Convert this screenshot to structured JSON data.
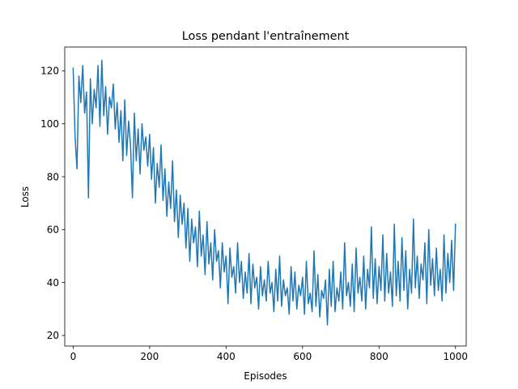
{
  "chart_data": {
    "type": "line",
    "title": "Loss pendant l'entraînement",
    "xlabel": "Episodes",
    "ylabel": "Loss",
    "xlim": [
      -22,
      1028
    ],
    "ylim": [
      16,
      129
    ],
    "xticks": [
      0,
      200,
      400,
      600,
      800,
      1000
    ],
    "yticks": [
      20,
      40,
      60,
      80,
      100,
      120
    ],
    "grid": false,
    "series": [
      {
        "name": "",
        "color": "#1f77b4",
        "x": [
          0,
          5,
          10,
          15,
          20,
          25,
          30,
          35,
          40,
          45,
          50,
          55,
          60,
          65,
          70,
          75,
          80,
          85,
          90,
          95,
          100,
          105,
          110,
          115,
          120,
          125,
          130,
          135,
          140,
          145,
          150,
          155,
          160,
          165,
          170,
          175,
          180,
          185,
          190,
          195,
          200,
          205,
          210,
          215,
          220,
          225,
          230,
          235,
          240,
          245,
          250,
          255,
          260,
          265,
          270,
          275,
          280,
          285,
          290,
          295,
          300,
          305,
          310,
          315,
          320,
          325,
          330,
          335,
          340,
          345,
          350,
          355,
          360,
          365,
          370,
          375,
          380,
          385,
          390,
          395,
          400,
          405,
          410,
          415,
          420,
          425,
          430,
          435,
          440,
          445,
          450,
          455,
          460,
          465,
          470,
          475,
          480,
          485,
          490,
          495,
          500,
          505,
          510,
          515,
          520,
          525,
          530,
          535,
          540,
          545,
          550,
          555,
          560,
          565,
          570,
          575,
          580,
          585,
          590,
          595,
          600,
          605,
          610,
          615,
          620,
          625,
          630,
          635,
          640,
          645,
          650,
          655,
          660,
          665,
          670,
          675,
          680,
          685,
          690,
          695,
          700,
          705,
          710,
          715,
          720,
          725,
          730,
          735,
          740,
          745,
          750,
          755,
          760,
          765,
          770,
          775,
          780,
          785,
          790,
          795,
          800,
          805,
          810,
          815,
          820,
          825,
          830,
          835,
          840,
          845,
          850,
          855,
          860,
          865,
          870,
          875,
          880,
          885,
          890,
          895,
          900,
          905,
          910,
          915,
          920,
          925,
          930,
          935,
          940,
          945,
          950,
          955,
          960,
          965,
          970,
          975,
          980,
          985,
          990,
          995,
          1000
        ],
        "y": [
          121,
          95,
          83,
          118,
          108,
          122,
          104,
          112,
          72,
          117,
          100,
          113,
          106,
          122,
          99,
          124,
          103,
          114,
          96,
          110,
          106,
          115,
          98,
          108,
          93,
          105,
          86,
          109,
          88,
          101,
          92,
          72,
          104,
          86,
          98,
          81,
          100,
          90,
          95,
          84,
          96,
          79,
          91,
          70,
          85,
          76,
          92,
          71,
          83,
          65,
          78,
          68,
          86,
          63,
          75,
          57,
          73,
          62,
          70,
          53,
          68,
          48,
          64,
          55,
          61,
          46,
          67,
          50,
          58,
          43,
          63,
          47,
          55,
          41,
          60,
          48,
          52,
          38,
          55,
          44,
          50,
          32,
          53,
          42,
          46,
          36,
          55,
          40,
          48,
          34,
          44,
          36,
          51,
          32,
          47,
          38,
          42,
          30,
          46,
          35,
          41,
          33,
          48,
          36,
          40,
          29,
          45,
          33,
          50,
          31,
          41,
          35,
          38,
          28,
          46,
          33,
          44,
          30,
          39,
          35,
          42,
          28,
          48,
          32,
          36,
          29,
          52,
          31,
          43,
          27,
          37,
          34,
          41,
          24,
          45,
          31,
          48,
          29,
          38,
          33,
          44,
          30,
          55,
          35,
          40,
          31,
          47,
          29,
          53,
          36,
          42,
          33,
          50,
          30,
          45,
          38,
          61,
          34,
          49,
          32,
          46,
          37,
          58,
          33,
          51,
          36,
          44,
          31,
          62,
          35,
          48,
          33,
          57,
          37,
          52,
          30,
          45,
          36,
          64,
          38,
          50,
          34,
          47,
          41,
          55,
          32,
          60,
          39,
          49,
          35,
          53,
          37,
          45,
          33,
          58,
          36,
          51,
          40,
          56,
          37,
          62
        ]
      }
    ]
  }
}
